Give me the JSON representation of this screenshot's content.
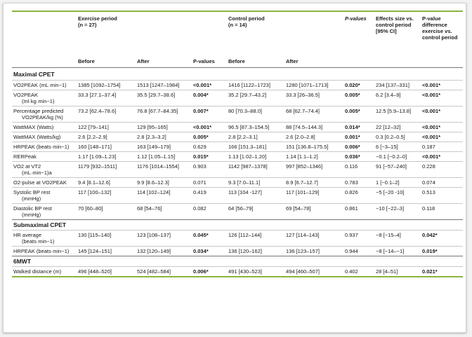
{
  "header": {
    "exercise_period": "Exercise period",
    "exercise_n": "(n = 27)",
    "control_period": "Control period",
    "control_n": "(n = 14)",
    "pvalues": "P-values",
    "effects_size": "Effects size vs. control period [95% CI]",
    "pvalue_difference": "P-value difference exercise vs. control period",
    "before": "Before",
    "after": "After",
    "pvalues_sub": "P-values",
    "before2": "Before",
    "after2": "After"
  },
  "sections": {
    "maximal": "Maximal CPET",
    "submaximal": "Submaximal CPET",
    "sixmwt": "6MWT"
  },
  "rows": {
    "vo2peak": {
      "label": "VO2PEAK (mL·min−1)",
      "ex_before": "1385 [1092–1754]",
      "ex_after": "1513 [1247–1984]",
      "ex_p": "<0.001*",
      "ctl_before": "1416 [1122–1723]",
      "ctl_after": "1280 [1071–1713]",
      "ctl_p": "0.020*",
      "effect": "234 [137–331]",
      "diff_p": "<0.001*"
    },
    "vo2peak_kg": {
      "label": "VO2PEAK",
      "label2": "(ml·kg·min−1)",
      "ex_before": "33.3 [27.1–37.4]",
      "ex_after": "35.5 [29.7–38.6]",
      "ex_p": "0.004*",
      "ctl_before": "35.2 [29.7–43.2]",
      "ctl_after": "33.3 [26–36.5]",
      "ctl_p": "0.005*",
      "effect": "6.2 [3.4–9]",
      "diff_p": "<0.001*"
    },
    "pct_predicted": {
      "label": "Percentage predicted",
      "label2": "VO2PEAK/kg (%)",
      "ex_before": "73.2 [62.4–78.6]",
      "ex_after": "76.8 [67.7–84.35]",
      "ex_p": "0.007*",
      "ctl_before": "80 [70.3–88.0]",
      "ctl_after": "68 [62.7–74.4]",
      "ctl_p": "0.005*",
      "effect": "12.5 [5.9–13.8]",
      "diff_p": "<0.001*"
    },
    "wattmax": {
      "label": "WattMAX (Watts)",
      "ex_before": "122 [79–141]",
      "ex_after": "129 [95–165]",
      "ex_p": "<0.001*",
      "ctl_before": "96.5 [87.3–154.5]",
      "ctl_after": "88 [74.5–144.3]",
      "ctl_p": "0.014*",
      "effect": "22 [12–32]",
      "diff_p": "<0.001*"
    },
    "wattmax_kg": {
      "label": "WattMAX (Watts/kg)",
      "ex_before": "2.6 [2.2–2.9]",
      "ex_after": "2.8 [2.3–3.2]",
      "ex_p": "0.005*",
      "ctl_before": "2.8 [2.2–3.1]",
      "ctl_after": "2.6 [2.0–2.8]",
      "ctl_p": "0.001*",
      "effect": "0.3 [0.2–0.5]",
      "diff_p": "<0.001*"
    },
    "hrpeak": {
      "label": "HRPEAK (beats·min−1)",
      "ex_before": "160 [148–171]",
      "ex_after": "163 [149–179]",
      "ex_p": "0.629",
      "ctl_before": "166 [151.3–181]",
      "ctl_after": "151 [136.8–175.5]",
      "ctl_p": "0.006*",
      "effect": "6 [−3–15]",
      "diff_p": "0.187"
    },
    "rerpeak": {
      "label": "RERPeak",
      "ex_before": "1.17 [1.09–1.23]",
      "ex_after": "1.12 [1.05–1.15]",
      "ex_p": "0.015*",
      "ctl_before": "1.13 [1.02–1.20]",
      "ctl_after": "1.14 [1.1–1.2]",
      "ctl_p": "0.036*",
      "effect": "−0.1 [−0.2–0]",
      "diff_p": "<0.001*"
    },
    "vo2vt2": {
      "label": "VO2 at VT2",
      "label2": "(mL·min−1)a",
      "ex_before": "1179 [932–1511]",
      "ex_after": "1176 [1014–1554]",
      "ex_p": "0.903",
      "ctl_before": "1142 [987–1378]",
      "ctl_after": "997 [852–1346]",
      "ctl_p": "0.116",
      "effect": "91 [−57–240]",
      "diff_p": "0.228"
    },
    "o2pulse": {
      "label": "O2-pulse at VO2PEAK",
      "ex_before": "9.4 [8.1–12.6]",
      "ex_after": "9.9 [8.6–12.3]",
      "ex_p": "0.071",
      "ctl_before": "9.3 [7.0–11.1]",
      "ctl_after": "8.9 [6.7–12.7]",
      "ctl_p": "0.783",
      "effect": "1 [−0.1–2]",
      "diff_p": "0.074"
    },
    "sbp": {
      "label": "Systolic BP rest",
      "label2": "(mmHg)",
      "ex_before": "117 [100–132]",
      "ex_after": "114 [102–124]",
      "ex_p": "0.419",
      "ctl_before": "113 [104 -127]",
      "ctl_after": "117 [101–129]",
      "ctl_p": "0.826",
      "effect": "−5 [−20 -10]",
      "diff_p": "0.513"
    },
    "dbp": {
      "label": "Diastolic BP rest",
      "label2": "(mmHg)",
      "ex_before": "70 [60–80]",
      "ex_after": "68 [54–76]",
      "ex_p": "0.082",
      "ctl_before": "64 [56–79]",
      "ctl_after": "69 [54–78]",
      "ctl_p": "0.861",
      "effect": "−10 [−22–3]",
      "diff_p": "0.118"
    },
    "hravg": {
      "label": "HR average",
      "label2": "(beats·min−1)",
      "ex_before": "130 [115–140]",
      "ex_after": "123 [108–137]",
      "ex_p": "0.045*",
      "ctl_before": "126 [112–144]",
      "ctl_after": "127 [114–143]",
      "ctl_p": "0.937",
      "effect": "−8 [−15–4]",
      "diff_p": "0.042*"
    },
    "hrpeak_sub": {
      "label": "HRPEAK (beats·min−1)",
      "ex_before": "145 [124–151]",
      "ex_after": "132 [120–149]",
      "ex_p": "0.034*",
      "ctl_before": "136 [120–162]",
      "ctl_after": "136 [123–157]",
      "ctl_p": "0.944",
      "effect": "−8 [−14–−1]",
      "diff_p": "0.019*"
    },
    "walked": {
      "label": "Walked distance (m)",
      "ex_before": "496 [448–520]",
      "ex_after": "524 [482–584]",
      "ex_p": "0.006*",
      "ctl_before": "491 [430–523]",
      "ctl_after": "494 [460–507]",
      "ctl_p": "0.402",
      "effect": "28 [4–51]",
      "diff_p": "0.021*"
    }
  },
  "colors": {
    "rule_green": "#8ab53c",
    "page_bg": "#f2f2f2"
  }
}
